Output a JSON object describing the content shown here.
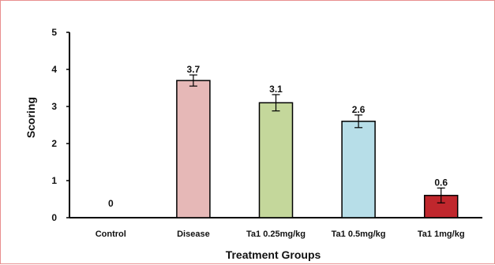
{
  "chart_data": {
    "type": "bar",
    "title": "",
    "xlabel": "Treatment Groups",
    "ylabel": "Scoring",
    "ylim": [
      0,
      5
    ],
    "yticks": [
      0,
      1,
      2,
      3,
      4,
      5
    ],
    "categories": [
      "Control",
      "Disease",
      "Ta1 0.25mg/kg",
      "Ta1 0.5mg/kg",
      "Ta1 1mg/kg"
    ],
    "values": [
      0,
      3.7,
      3.1,
      2.6,
      0.6
    ],
    "value_labels": [
      "0",
      "3.7",
      "3.1",
      "2.6",
      "0.6"
    ],
    "errors": [
      0,
      0.15,
      0.22,
      0.17,
      0.2
    ],
    "colors": [
      "#ffffff",
      "#e6b8b7",
      "#c4d79b",
      "#b7dee8",
      "#c0272d"
    ],
    "grid": false,
    "legend": "none"
  }
}
